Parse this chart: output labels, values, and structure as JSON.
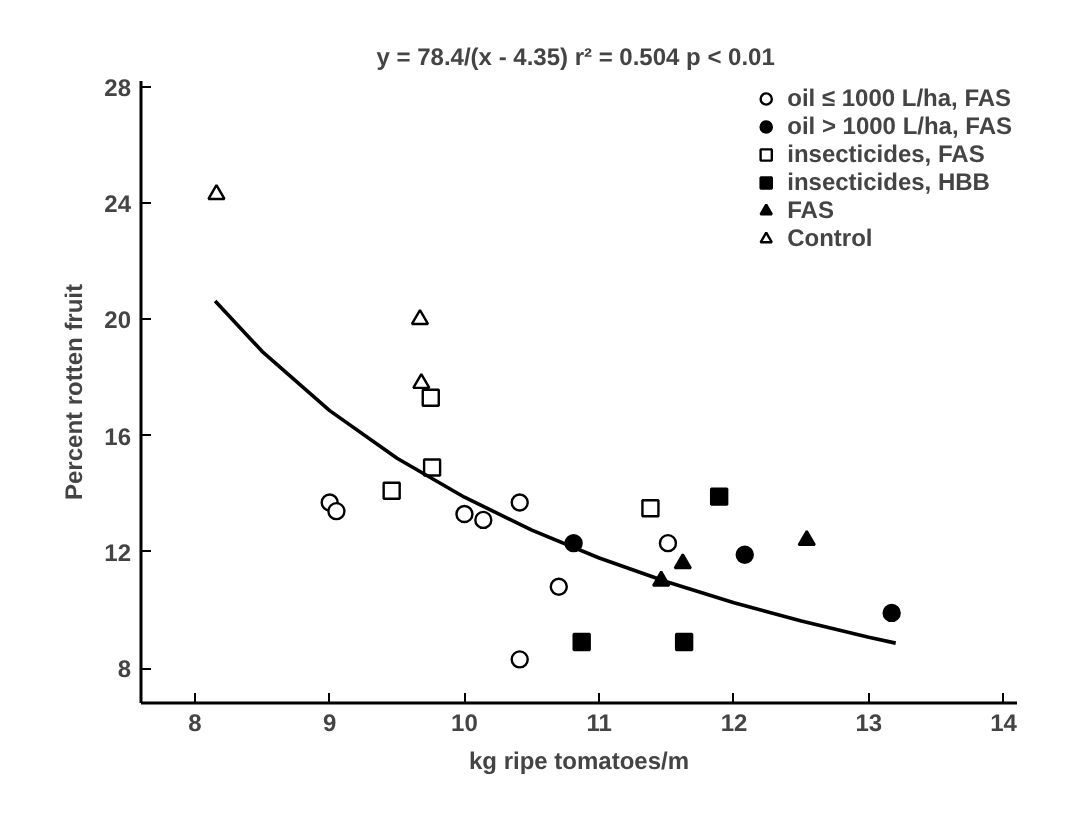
{
  "chart_data": {
    "type": "scatter",
    "xlabel": "kg ripe tomatoes/m",
    "ylabel": "Percent rotten fruit",
    "annotations": [
      "y = 78.4/(x - 4.35) r² = 0.504  p < 0.01"
    ],
    "xlim": [
      7.6,
      14.1
    ],
    "ylim": [
      6.8,
      28.2
    ],
    "xticks": [
      8,
      9,
      10,
      11,
      12,
      13,
      14
    ],
    "yticks": [
      8,
      12,
      16,
      20,
      24,
      28
    ],
    "grid": false,
    "legend": "top right",
    "series": [
      {
        "name": "oil ≤ 1000 L/ha, FAS",
        "color": "#ffffff",
        "marker": "circle",
        "x": [
          9.0,
          9.05,
          10.0,
          10.14,
          10.41,
          11.51,
          10.7,
          10.41
        ],
        "values": [
          13.7,
          13.4,
          13.3,
          13.1,
          13.7,
          12.3,
          10.8,
          8.3
        ]
      },
      {
        "name": "oil > 1000 L/ha, FAS",
        "color": "#000000",
        "marker": "circle",
        "x": [
          10.81,
          12.08,
          13.17
        ],
        "values": [
          12.3,
          11.9,
          9.9
        ]
      },
      {
        "name": "insecticides, FAS",
        "color": "#ffffff",
        "marker": "square",
        "x": [
          9.75,
          9.76,
          9.46,
          11.38
        ],
        "values": [
          17.3,
          14.9,
          14.1,
          13.5
        ]
      },
      {
        "name": "insecticides, HBB",
        "color": "#000000",
        "marker": "square",
        "x": [
          11.89,
          10.87,
          11.63
        ],
        "values": [
          13.9,
          8.9,
          8.9
        ]
      },
      {
        "name": "FAS",
        "color": "#000000",
        "marker": "triangle",
        "x": [
          11.46,
          11.62,
          12.54
        ],
        "values": [
          11.0,
          11.6,
          12.4
        ]
      },
      {
        "name": "Control",
        "color": "#ffffff",
        "marker": "triangle",
        "x": [
          8.16,
          9.67,
          9.68
        ],
        "values": [
          24.3,
          20.0,
          17.8
        ]
      },
      {
        "type": "line",
        "color": "#000000",
        "line_style": "solid",
        "x": [
          8.15,
          8.5,
          9.0,
          9.5,
          10.0,
          10.5,
          11.0,
          11.5,
          12.0,
          12.5,
          13.0,
          13.2
        ],
        "values": [
          20.63,
          18.89,
          16.86,
          15.22,
          13.88,
          12.75,
          11.79,
          10.97,
          10.25,
          9.62,
          9.06,
          8.86
        ]
      }
    ]
  }
}
